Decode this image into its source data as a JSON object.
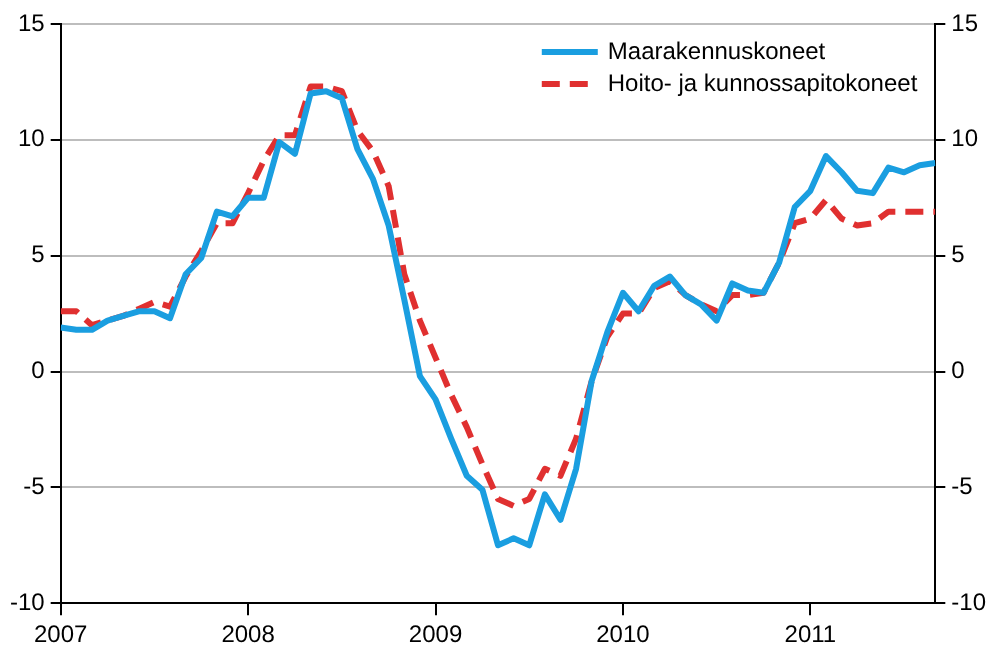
{
  "chart_data": {
    "type": "line",
    "x": [
      "2007-01",
      "2007-02",
      "2007-03",
      "2007-04",
      "2007-05",
      "2007-06",
      "2007-07",
      "2007-08",
      "2007-09",
      "2007-10",
      "2007-11",
      "2007-12",
      "2008-01",
      "2008-02",
      "2008-03",
      "2008-04",
      "2008-05",
      "2008-06",
      "2008-07",
      "2008-08",
      "2008-09",
      "2008-10",
      "2008-11",
      "2008-12",
      "2009-01",
      "2009-02",
      "2009-03",
      "2009-04",
      "2009-05",
      "2009-06",
      "2009-07",
      "2009-08",
      "2009-09",
      "2009-10",
      "2009-11",
      "2009-12",
      "2010-01",
      "2010-02",
      "2010-03",
      "2010-04",
      "2010-05",
      "2010-06",
      "2010-07",
      "2010-08",
      "2010-09",
      "2010-10",
      "2010-11",
      "2010-12",
      "2011-01",
      "2011-02",
      "2011-03",
      "2011-04",
      "2011-05",
      "2011-06",
      "2011-07",
      "2011-08",
      "2011-09"
    ],
    "series": [
      {
        "name": "Maarakennuskoneet",
        "color": "#1a9ee0",
        "line_style": "solid",
        "values": [
          1.9,
          1.8,
          1.8,
          2.2,
          2.4,
          2.6,
          2.6,
          2.3,
          4.2,
          4.9,
          6.9,
          6.7,
          7.5,
          7.5,
          9.9,
          9.4,
          12.0,
          12.1,
          11.8,
          9.6,
          8.3,
          6.3,
          3.1,
          -0.2,
          -1.2,
          -2.9,
          -4.5,
          -5.1,
          -7.5,
          -7.2,
          -7.5,
          -5.3,
          -6.4,
          -4.2,
          -0.4,
          1.7,
          3.4,
          2.6,
          3.7,
          4.1,
          3.3,
          2.9,
          2.2,
          3.8,
          3.5,
          3.4,
          4.7,
          7.1,
          7.8,
          9.3,
          8.6,
          7.8,
          7.7,
          8.8,
          8.6,
          8.9,
          9.0
        ]
      },
      {
        "name": "Hoito- ja kunnossapitokoneet",
        "color": "#e03030",
        "line_style": "dashed",
        "values": [
          2.6,
          2.6,
          2.0,
          2.2,
          2.4,
          2.7,
          3.0,
          2.8,
          4.1,
          5.2,
          6.4,
          6.4,
          7.7,
          9.1,
          10.2,
          10.2,
          12.3,
          12.3,
          12.1,
          10.4,
          9.5,
          8.0,
          4.2,
          2.2,
          0.6,
          -1.0,
          -2.4,
          -4.0,
          -5.5,
          -5.8,
          -5.5,
          -4.2,
          -4.5,
          -2.9,
          -0.4,
          1.5,
          2.5,
          2.5,
          3.6,
          3.9,
          3.3,
          2.9,
          2.6,
          3.3,
          3.3,
          3.4,
          4.7,
          6.4,
          6.6,
          7.4,
          6.6,
          6.3,
          6.4,
          6.9,
          6.9,
          6.9,
          6.9
        ]
      }
    ],
    "xlim": [
      "2007-01",
      "2011-09"
    ],
    "xticks": [
      "2007",
      "2008",
      "2009",
      "2010",
      "2011"
    ],
    "ylim": [
      -10,
      15
    ],
    "yticks": [
      -10,
      -5,
      0,
      5,
      10,
      15
    ],
    "y2lim": [
      -10,
      15
    ],
    "y2ticks": [
      -10,
      -5,
      0,
      5,
      10,
      15
    ],
    "grid": "y",
    "legend": "top right",
    "marker": "none"
  }
}
